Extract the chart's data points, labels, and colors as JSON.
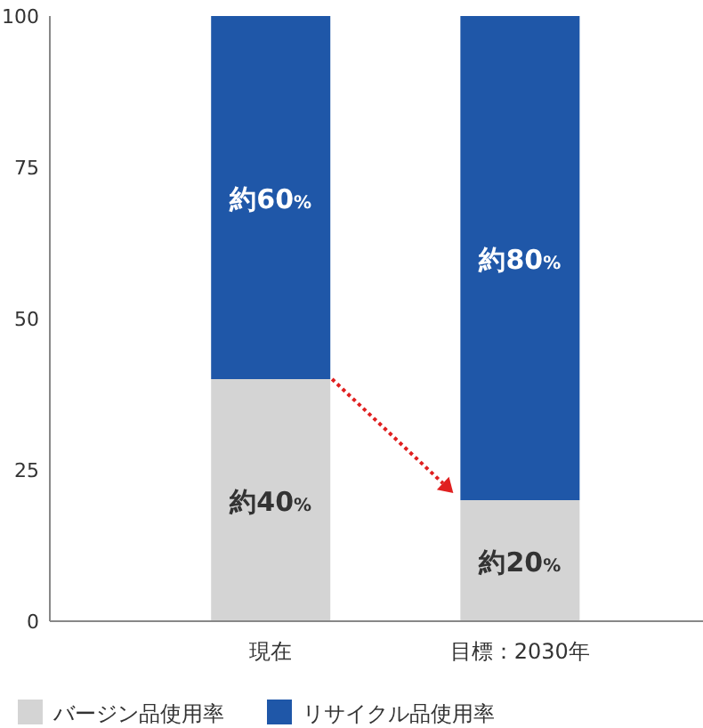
{
  "chart_data": {
    "type": "bar",
    "stacked": true,
    "categories": [
      "現在",
      "目標：2030年"
    ],
    "series": [
      {
        "name": "バージン品使用率",
        "color": "#d4d4d4",
        "values": [
          40,
          20
        ],
        "value_labels": [
          "約40%",
          "約20%"
        ]
      },
      {
        "name": "リサイクル品使用率",
        "color": "#1f57a8",
        "values": [
          60,
          80
        ],
        "value_labels": [
          "約60%",
          "約80%"
        ]
      }
    ],
    "ylim": [
      0,
      100
    ],
    "yticks": [
      0,
      25,
      50,
      75,
      100
    ],
    "legend": "bottom"
  }
}
